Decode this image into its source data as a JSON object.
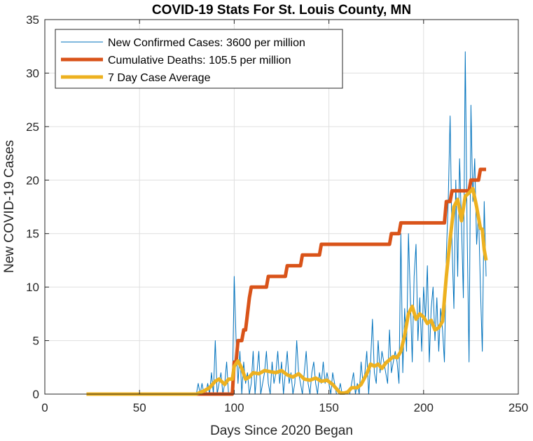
{
  "chart_data": {
    "type": "line",
    "title": "COVID-19 Stats For St. Louis County, MN",
    "xlabel": "Days Since 2020 Began",
    "ylabel": "New COVID-19 Cases",
    "xlim": [
      0,
      250
    ],
    "ylim": [
      0,
      35
    ],
    "xticks": [
      0,
      50,
      100,
      150,
      200,
      250
    ],
    "yticks": [
      0,
      5,
      10,
      15,
      20,
      25,
      30,
      35
    ],
    "grid": true,
    "legend_position": "top-left",
    "series": [
      {
        "name": "New Confirmed Cases: 3600 per million",
        "color": "#0072BD",
        "line_width": "thin",
        "points": [
          [
            22,
            0
          ],
          [
            80,
            0
          ],
          [
            81,
            1
          ],
          [
            82,
            0
          ],
          [
            83,
            1
          ],
          [
            84,
            0
          ],
          [
            85,
            0
          ],
          [
            86,
            1
          ],
          [
            87,
            0
          ],
          [
            88,
            2
          ],
          [
            89,
            0
          ],
          [
            90,
            5
          ],
          [
            91,
            0
          ],
          [
            92,
            1
          ],
          [
            93,
            2
          ],
          [
            94,
            0
          ],
          [
            95,
            1
          ],
          [
            96,
            3
          ],
          [
            97,
            0
          ],
          [
            98,
            0
          ],
          [
            99,
            0
          ],
          [
            100,
            11
          ],
          [
            101,
            5
          ],
          [
            102,
            1
          ],
          [
            103,
            4
          ],
          [
            104,
            0
          ],
          [
            105,
            3
          ],
          [
            106,
            1
          ],
          [
            107,
            2
          ],
          [
            108,
            0
          ],
          [
            109,
            1
          ],
          [
            110,
            4
          ],
          [
            111,
            0
          ],
          [
            112,
            2
          ],
          [
            113,
            4
          ],
          [
            114,
            0
          ],
          [
            115,
            1
          ],
          [
            116,
            2
          ],
          [
            117,
            4
          ],
          [
            118,
            1
          ],
          [
            119,
            0
          ],
          [
            120,
            3
          ],
          [
            121,
            1
          ],
          [
            122,
            2
          ],
          [
            123,
            4
          ],
          [
            124,
            1
          ],
          [
            125,
            3
          ],
          [
            126,
            0
          ],
          [
            127,
            2
          ],
          [
            128,
            4
          ],
          [
            129,
            1
          ],
          [
            130,
            2
          ],
          [
            131,
            0
          ],
          [
            132,
            1
          ],
          [
            133,
            5
          ],
          [
            134,
            2
          ],
          [
            135,
            1
          ],
          [
            136,
            0
          ],
          [
            137,
            2
          ],
          [
            138,
            4
          ],
          [
            139,
            1
          ],
          [
            140,
            0
          ],
          [
            141,
            2
          ],
          [
            142,
            3
          ],
          [
            143,
            1
          ],
          [
            144,
            0
          ],
          [
            145,
            2
          ],
          [
            146,
            1
          ],
          [
            147,
            3
          ],
          [
            148,
            1
          ],
          [
            149,
            2
          ],
          [
            150,
            1
          ],
          [
            151,
            0
          ],
          [
            152,
            2
          ],
          [
            153,
            1
          ],
          [
            154,
            0
          ],
          [
            155,
            0
          ],
          [
            156,
            1
          ],
          [
            157,
            0
          ],
          [
            158,
            0
          ],
          [
            159,
            0
          ],
          [
            160,
            0
          ],
          [
            161,
            0
          ],
          [
            162,
            1
          ],
          [
            163,
            2
          ],
          [
            164,
            0
          ],
          [
            165,
            1
          ],
          [
            166,
            0
          ],
          [
            167,
            3
          ],
          [
            168,
            1
          ],
          [
            169,
            2
          ],
          [
            170,
            4
          ],
          [
            171,
            0
          ],
          [
            172,
            3
          ],
          [
            173,
            7
          ],
          [
            174,
            2
          ],
          [
            175,
            1
          ],
          [
            176,
            5
          ],
          [
            177,
            2
          ],
          [
            178,
            4
          ],
          [
            179,
            3
          ],
          [
            180,
            2
          ],
          [
            181,
            1
          ],
          [
            182,
            6
          ],
          [
            183,
            2
          ],
          [
            184,
            3
          ],
          [
            185,
            4
          ],
          [
            186,
            3
          ],
          [
            187,
            1
          ],
          [
            188,
            15
          ],
          [
            189,
            2
          ],
          [
            190,
            8
          ],
          [
            191,
            4
          ],
          [
            192,
            15
          ],
          [
            193,
            9
          ],
          [
            194,
            3
          ],
          [
            195,
            11
          ],
          [
            196,
            14
          ],
          [
            197,
            5
          ],
          [
            198,
            9
          ],
          [
            199,
            4
          ],
          [
            200,
            10
          ],
          [
            201,
            7
          ],
          [
            202,
            12
          ],
          [
            203,
            3
          ],
          [
            204,
            8
          ],
          [
            205,
            10
          ],
          [
            206,
            5
          ],
          [
            207,
            9
          ],
          [
            208,
            4
          ],
          [
            209,
            8
          ],
          [
            210,
            6
          ],
          [
            211,
            3
          ],
          [
            212,
            13
          ],
          [
            213,
            18
          ],
          [
            214,
            26
          ],
          [
            215,
            14
          ],
          [
            216,
            8
          ],
          [
            217,
            20
          ],
          [
            218,
            11
          ],
          [
            219,
            22
          ],
          [
            220,
            16
          ],
          [
            221,
            9
          ],
          [
            222,
            32
          ],
          [
            223,
            15
          ],
          [
            224,
            3
          ],
          [
            225,
            27
          ],
          [
            226,
            18
          ],
          [
            227,
            22
          ],
          [
            228,
            14
          ],
          [
            229,
            17
          ],
          [
            230,
            10
          ],
          [
            231,
            4
          ],
          [
            232,
            18
          ],
          [
            233,
            11
          ]
        ]
      },
      {
        "name": "Cumulative Deaths: 105.5 per million",
        "color": "#D95319",
        "line_width": "thick",
        "points": [
          [
            22,
            0
          ],
          [
            99,
            0
          ],
          [
            100,
            3
          ],
          [
            101,
            3
          ],
          [
            102,
            5
          ],
          [
            104,
            5
          ],
          [
            105,
            6
          ],
          [
            106,
            6
          ],
          [
            108,
            9
          ],
          [
            109,
            10
          ],
          [
            117,
            10
          ],
          [
            118,
            11
          ],
          [
            127,
            11
          ],
          [
            128,
            12
          ],
          [
            135,
            12
          ],
          [
            136,
            13
          ],
          [
            145,
            13
          ],
          [
            146,
            14
          ],
          [
            182,
            14
          ],
          [
            183,
            15
          ],
          [
            187,
            15
          ],
          [
            188,
            16
          ],
          [
            211,
            16
          ],
          [
            212,
            18
          ],
          [
            214,
            18
          ],
          [
            215,
            19
          ],
          [
            224,
            19
          ],
          [
            225,
            20
          ],
          [
            229,
            20
          ],
          [
            230,
            21
          ],
          [
            233,
            21
          ]
        ]
      },
      {
        "name": "7 Day Case Average",
        "color": "#EDB120",
        "line_width": "thick",
        "points": [
          [
            22,
            0
          ],
          [
            80,
            0
          ],
          [
            84,
            0.3
          ],
          [
            87,
            0.6
          ],
          [
            90,
            1.2
          ],
          [
            92,
            1.4
          ],
          [
            95,
            0.9
          ],
          [
            97,
            1.4
          ],
          [
            99,
            1.4
          ],
          [
            100,
            2.6
          ],
          [
            102,
            3.1
          ],
          [
            104,
            2.4
          ],
          [
            106,
            1.4
          ],
          [
            108,
            1.6
          ],
          [
            110,
            2.0
          ],
          [
            113,
            1.9
          ],
          [
            116,
            2.2
          ],
          [
            119,
            2.1
          ],
          [
            122,
            2.0
          ],
          [
            125,
            2.2
          ],
          [
            128,
            1.8
          ],
          [
            131,
            1.6
          ],
          [
            134,
            1.9
          ],
          [
            137,
            1.4
          ],
          [
            140,
            1.3
          ],
          [
            143,
            1.5
          ],
          [
            146,
            1.2
          ],
          [
            149,
            1.3
          ],
          [
            152,
            0.9
          ],
          [
            154,
            0.5
          ],
          [
            156,
            0.1
          ],
          [
            158,
            0.1
          ],
          [
            160,
            0.2
          ],
          [
            162,
            0.6
          ],
          [
            165,
            0.6
          ],
          [
            167,
            0.9
          ],
          [
            170,
            1.9
          ],
          [
            172,
            2.8
          ],
          [
            174,
            2.6
          ],
          [
            176,
            2.8
          ],
          [
            178,
            2.4
          ],
          [
            180,
            2.9
          ],
          [
            182,
            3.2
          ],
          [
            184,
            3.5
          ],
          [
            186,
            3.4
          ],
          [
            188,
            4.0
          ],
          [
            190,
            5.5
          ],
          [
            192,
            7.5
          ],
          [
            194,
            8.2
          ],
          [
            196,
            7.0
          ],
          [
            198,
            7.5
          ],
          [
            200,
            7.2
          ],
          [
            202,
            6.6
          ],
          [
            204,
            6.9
          ],
          [
            206,
            6.0
          ],
          [
            208,
            6.2
          ],
          [
            210,
            6.8
          ],
          [
            212,
            11.0
          ],
          [
            214,
            14.5
          ],
          [
            216,
            17.5
          ],
          [
            218,
            18.2
          ],
          [
            220,
            16.2
          ],
          [
            222,
            18.5
          ],
          [
            224,
            18.8
          ],
          [
            226,
            19.2
          ],
          [
            228,
            17.5
          ],
          [
            230,
            15.5
          ],
          [
            231,
            15.4
          ],
          [
            232,
            13.5
          ],
          [
            233,
            12.5
          ]
        ]
      }
    ]
  }
}
